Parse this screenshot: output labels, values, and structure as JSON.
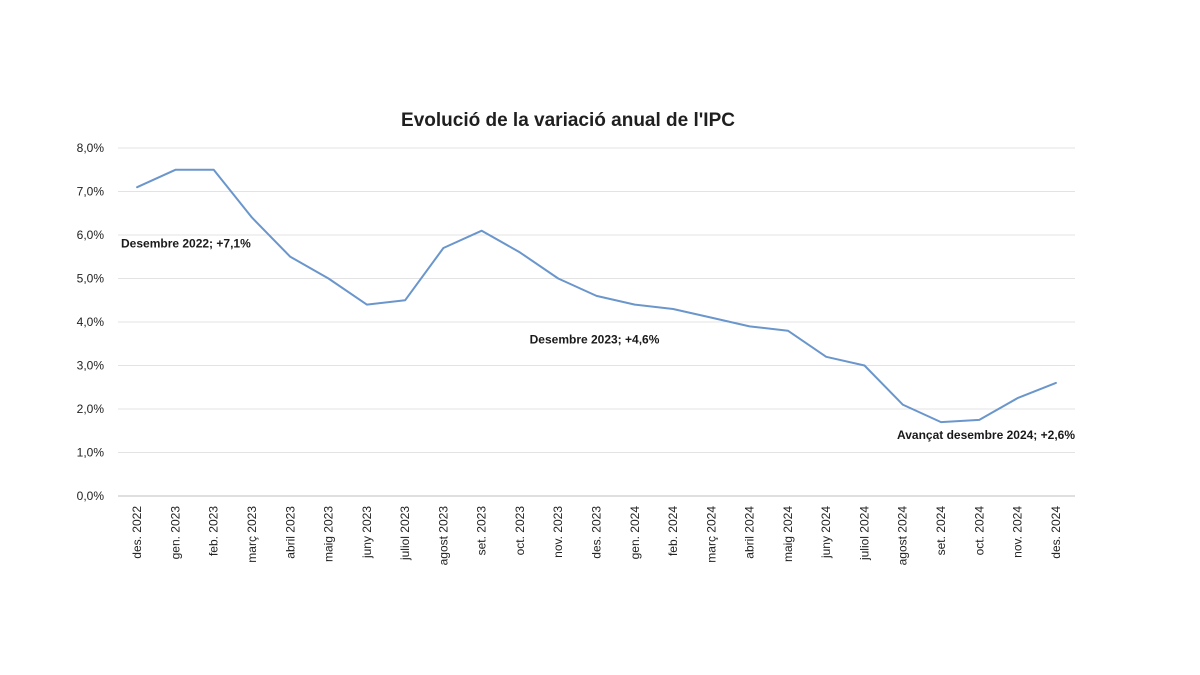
{
  "chart_data": {
    "type": "line",
    "title": "Evolució de la variació anual de l'IPC",
    "xlabel": "",
    "ylabel": "",
    "ylim": [
      0,
      8
    ],
    "y_step": 1,
    "y_ticks": [
      "0,0%",
      "1,0%",
      "2,0%",
      "3,0%",
      "4,0%",
      "5,0%",
      "6,0%",
      "7,0%",
      "8,0%"
    ],
    "grid": true,
    "legend": "none",
    "series_color": "#6a96cc",
    "categories": [
      "des. 2022",
      "gen. 2023",
      "feb. 2023",
      "març 2023",
      "abril 2023",
      "maig 2023",
      "juny 2023",
      "juliol 2023",
      "agost 2023",
      "set. 2023",
      "oct. 2023",
      "nov. 2023",
      "des. 2023",
      "gen. 2024",
      "feb. 2024",
      "març 2024",
      "abril 2024",
      "maig 2024",
      "juny 2024",
      "juliol 2024",
      "agost 2024",
      "set. 2024",
      "oct. 2024",
      "nov. 2024",
      "des. 2024"
    ],
    "series": [
      {
        "values": [
          7.1,
          7.5,
          7.5,
          6.4,
          5.5,
          5.0,
          4.4,
          4.5,
          5.7,
          6.1,
          5.6,
          5.0,
          4.6,
          4.4,
          4.3,
          4.1,
          3.9,
          3.8,
          3.2,
          3.0,
          2.1,
          1.7,
          1.75,
          2.25,
          2.6
        ]
      }
    ],
    "annotations": [
      {
        "text": "Desembre 2022; +7,1%",
        "x": "des. 2022",
        "y": 5.8
      },
      {
        "text": "Desembre 2023;  +4,6%",
        "x": "des. 2023",
        "y": 3.6
      },
      {
        "text": "Avançat desembre 2024; +2,6%",
        "x": "des. 2024",
        "y": 1.4
      }
    ]
  }
}
